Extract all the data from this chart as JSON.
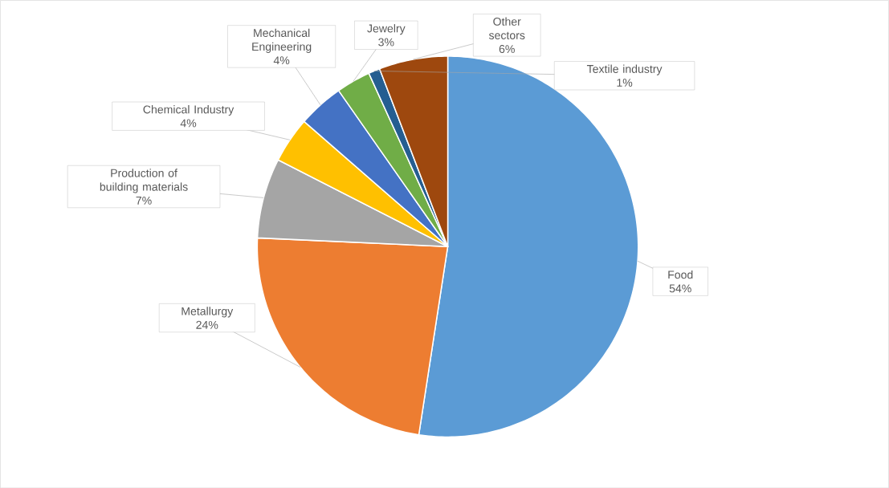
{
  "chart_data": {
    "type": "pie",
    "categories": [
      "Food",
      "Metallurgy",
      "Production of building materials",
      "Chemical Industry",
      "Mechanical Engineering",
      "Jewelry",
      "Textile industry",
      "Other sectors"
    ],
    "values": [
      54,
      24,
      7,
      4,
      4,
      3,
      1,
      6
    ],
    "value_labels": [
      "54%",
      "24%",
      "7%",
      "4%",
      "4%",
      "3%",
      "1%",
      "6%"
    ],
    "colors": [
      "#5b9bd5",
      "#ed7d31",
      "#a5a5a5",
      "#ffc000",
      "#4472c4",
      "#70ad47",
      "#255e91",
      "#9e480e"
    ]
  }
}
